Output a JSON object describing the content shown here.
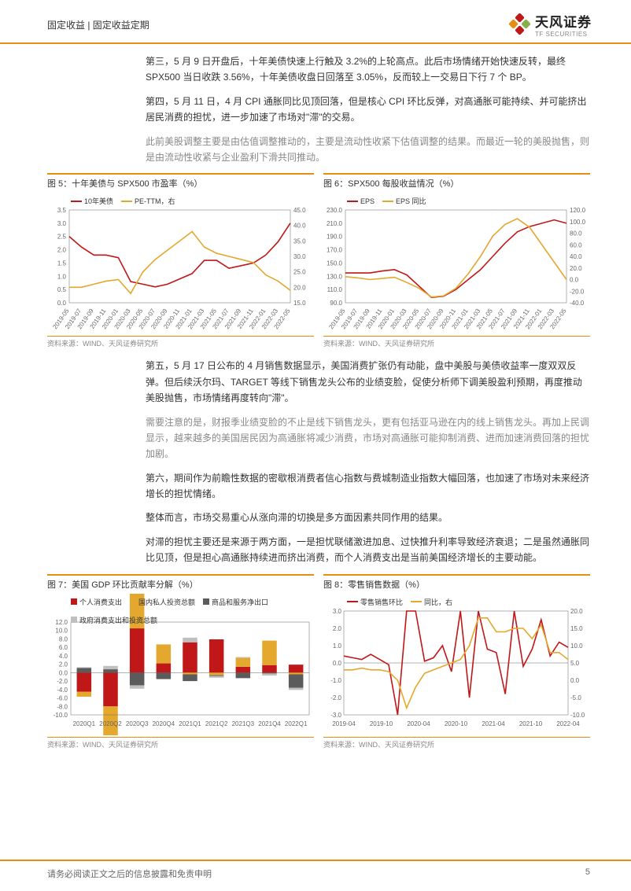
{
  "header": {
    "breadcrumb": "固定收益 | 固定收益定期",
    "logo_cn": "天风证券",
    "logo_en": "TF SECURITIES"
  },
  "paragraphs": {
    "p1": "第三，5 月 9 日开盘后，十年美债快速上行触及 3.2%的上轮高点。此后市场情绪开始快速反转，最终 SPX500 当日收跌 3.56%，十年美债收盘日回落至 3.05%，反而较上一交易日下行 7 个 BP。",
    "p2": "第四，5 月 11 日，4 月 CPI 通胀同比见顶回落，但是核心 CPI 环比反弹，对高通胀可能持续、并可能挤出居民消费的担忧，进一步加速了市场对\"滞\"的交易。",
    "p3": "此前美股调整主要是由估值调整推动的，主要是流动性收紧下估值调整的结果。而最近一轮的美股抛售，则是由流动性收紧与企业盈利下滑共同推动。",
    "p4": "第五，5 月 17 日公布的 4 月销售数据显示，美国消费扩张仍有动能，盘中美股与美债收益率一度双双反弹。但后续沃尔玛、TARGET 等线下销售龙头公布的业绩变脸，促使分析师下调美股盈利预期，再度推动美股抛售，市场情绪再度转向\"滞\"。",
    "p5": "需要注意的是，财报季业绩变脸的不止是线下销售龙头，更有包括亚马逊在内的线上销售龙头。再加上民调显示，越来越多的美国居民因为高通胀将减少消费，市场对高通胀可能抑制消费、进而加速消费回落的担忧加剧。",
    "p6": "第六，期间作为前瞻性数据的密歇根消费者信心指数与费城制造业指数大幅回落，也加速了市场对未来经济增长的担忧情绪。",
    "p7": "整体而言，市场交易重心从涨向滞的切换是多方面因素共同作用的结果。",
    "p8": "对滞的担忧主要还是来源于两方面，一是担忧联储激进加息、过快推升利率导致经济衰退；二是虽然通胀同比见顶，但是担心高通胀持续进而挤出消费，而个人消费支出是当前美国经济增长的主要动能。"
  },
  "chart5": {
    "type": "line",
    "title": "图 5：十年美债与 SPX500 市盈率（%）",
    "legend": [
      {
        "label": "10年美债",
        "color": "#c01718"
      },
      {
        "label": "PE-TTM，右",
        "color": "#e5a82e"
      }
    ],
    "x": [
      "2019-05",
      "2019-07",
      "2019-09",
      "2019-11",
      "2020-01",
      "2020-03",
      "2020-05",
      "2020-07",
      "2020-09",
      "2020-11",
      "2021-01",
      "2021-03",
      "2021-05",
      "2021-07",
      "2021-09",
      "2021-11",
      "2022-01",
      "2022-03",
      "2022-05"
    ],
    "y_left": {
      "min": 0.0,
      "max": 3.5,
      "step": 0.5
    },
    "y_right": {
      "min": 15.0,
      "max": 45.0,
      "step": 5.0
    },
    "series": {
      "bond10y": [
        2.5,
        2.1,
        1.8,
        1.8,
        1.7,
        0.8,
        0.7,
        0.6,
        0.7,
        0.9,
        1.1,
        1.6,
        1.6,
        1.3,
        1.4,
        1.5,
        1.8,
        2.3,
        3.0
      ],
      "pe": [
        20,
        20,
        21,
        22,
        22.5,
        18,
        25,
        29,
        32,
        35,
        38,
        33,
        31,
        30,
        29,
        28,
        24,
        22,
        19
      ]
    },
    "source": "资料来源：WIND、天风证券研究所",
    "colors": {
      "bg": "#ffffff",
      "grid": "#e0e0e0",
      "axis": "#666666"
    }
  },
  "chart6": {
    "type": "line",
    "title": "图 6：SPX500 每股收益情况（%）",
    "legend": [
      {
        "label": "EPS",
        "color": "#c01718"
      },
      {
        "label": "EPS 同比",
        "color": "#e5a82e"
      }
    ],
    "x": [
      "2019-05",
      "2019-07",
      "2019-09",
      "2019-11",
      "2020-01",
      "2020-03",
      "2020-05",
      "2020-07",
      "2020-09",
      "2020-11",
      "2021-01",
      "2021-03",
      "2021-05",
      "2021-07",
      "2021-09",
      "2021-11",
      "2022-01",
      "2022-03",
      "2022-05"
    ],
    "y_left": {
      "min": 90,
      "max": 230,
      "step": 20
    },
    "y_right": {
      "min": -40.0,
      "max": 120.0,
      "step": 20.0
    },
    "series": {
      "eps": [
        135,
        135,
        135,
        138,
        140,
        132,
        115,
        98,
        100,
        110,
        125,
        140,
        160,
        180,
        197,
        205,
        210,
        215,
        210
      ],
      "eps_yoy": [
        5,
        3,
        0,
        2,
        4,
        -5,
        -15,
        -30,
        -28,
        -15,
        10,
        40,
        75,
        95,
        105,
        90,
        60,
        30,
        0
      ]
    },
    "source": "资料来源：WIND、天风证券研究所",
    "colors": {
      "bg": "#ffffff",
      "grid": "#e0e0e0",
      "axis": "#666666"
    }
  },
  "chart7": {
    "type": "bar",
    "title": "图 7：美国 GDP 环比贡献率分解（%）",
    "legend": [
      {
        "label": "个人消费支出",
        "color": "#c01718",
        "shape": "square"
      },
      {
        "label": "国内私人投资总额",
        "color": "#e5a82e",
        "shape": "square"
      },
      {
        "label": "商品和服务净出口",
        "color": "#5b5b5b",
        "shape": "square"
      },
      {
        "label": "政府消费支出和投资总额",
        "color": "#bfbfbf",
        "shape": "square"
      }
    ],
    "x": [
      "2020Q1",
      "2020Q2",
      "2020Q3",
      "2020Q4",
      "2021Q1",
      "2021Q2",
      "2021Q3",
      "2021Q4",
      "2022Q1"
    ],
    "y": {
      "min": -10.0,
      "max": 12.0,
      "step": 2.0
    },
    "stacks": {
      "personal": [
        -4.5,
        -8.0,
        10.5,
        2.2,
        7.2,
        7.9,
        1.4,
        1.8,
        1.9
      ],
      "private_inv": [
        -1.2,
        -7.0,
        8.8,
        4.5,
        -0.4,
        -0.6,
        2.1,
        5.8,
        -0.4
      ],
      "net_export": [
        1.1,
        0.8,
        -3.0,
        -1.5,
        -1.6,
        -0.2,
        -1.3,
        -0.2,
        -3.2
      ],
      "gov": [
        0.2,
        0.8,
        -0.8,
        -0.1,
        1.1,
        -0.4,
        0.2,
        -0.5,
        -0.5
      ]
    },
    "source": "资料来源：WIND、天风证券研究所",
    "colors": {
      "bg": "#ffffff",
      "grid": "#e0e0e0",
      "axis": "#666666"
    }
  },
  "chart8": {
    "type": "line",
    "title": "图 8：零售销售数据（%）",
    "legend": [
      {
        "label": "零售销售环比",
        "color": "#c01718"
      },
      {
        "label": "同比，右",
        "color": "#e5a82e"
      }
    ],
    "x": [
      "2019-04",
      "2019-10",
      "2020-04",
      "2020-10",
      "2021-04",
      "2021-10",
      "2022-04"
    ],
    "y_left": {
      "min": -3.0,
      "max": 3.0,
      "step": 1.0
    },
    "y_right": {
      "min": -10.0,
      "max": 20.0,
      "step": 5.0
    },
    "series": {
      "mom": [
        0.4,
        0.3,
        0.2,
        0.5,
        0.2,
        -0.1,
        -3.0,
        3.0,
        3.0,
        0.1,
        0.3,
        1.0,
        -0.5,
        3.0,
        -2.0,
        3.0,
        0.8,
        0.6,
        -1.8,
        3.0,
        -0.2,
        0.8,
        2.5,
        0.4,
        1.2,
        0.9
      ],
      "yoy": [
        3,
        3,
        3.5,
        3,
        3,
        2.5,
        0,
        -8,
        -2,
        2,
        3,
        4,
        5,
        6,
        10,
        18,
        18,
        14,
        14,
        15,
        15,
        12,
        16,
        8,
        8,
        6
      ]
    },
    "source": "资料来源：WIND、天风证券研究所",
    "colors": {
      "bg": "#ffffff",
      "grid": "#e0e0e0",
      "axis": "#666666"
    }
  },
  "footer": {
    "disclaimer": "请务必阅读正文之后的信息披露和免责申明",
    "page": "5"
  }
}
